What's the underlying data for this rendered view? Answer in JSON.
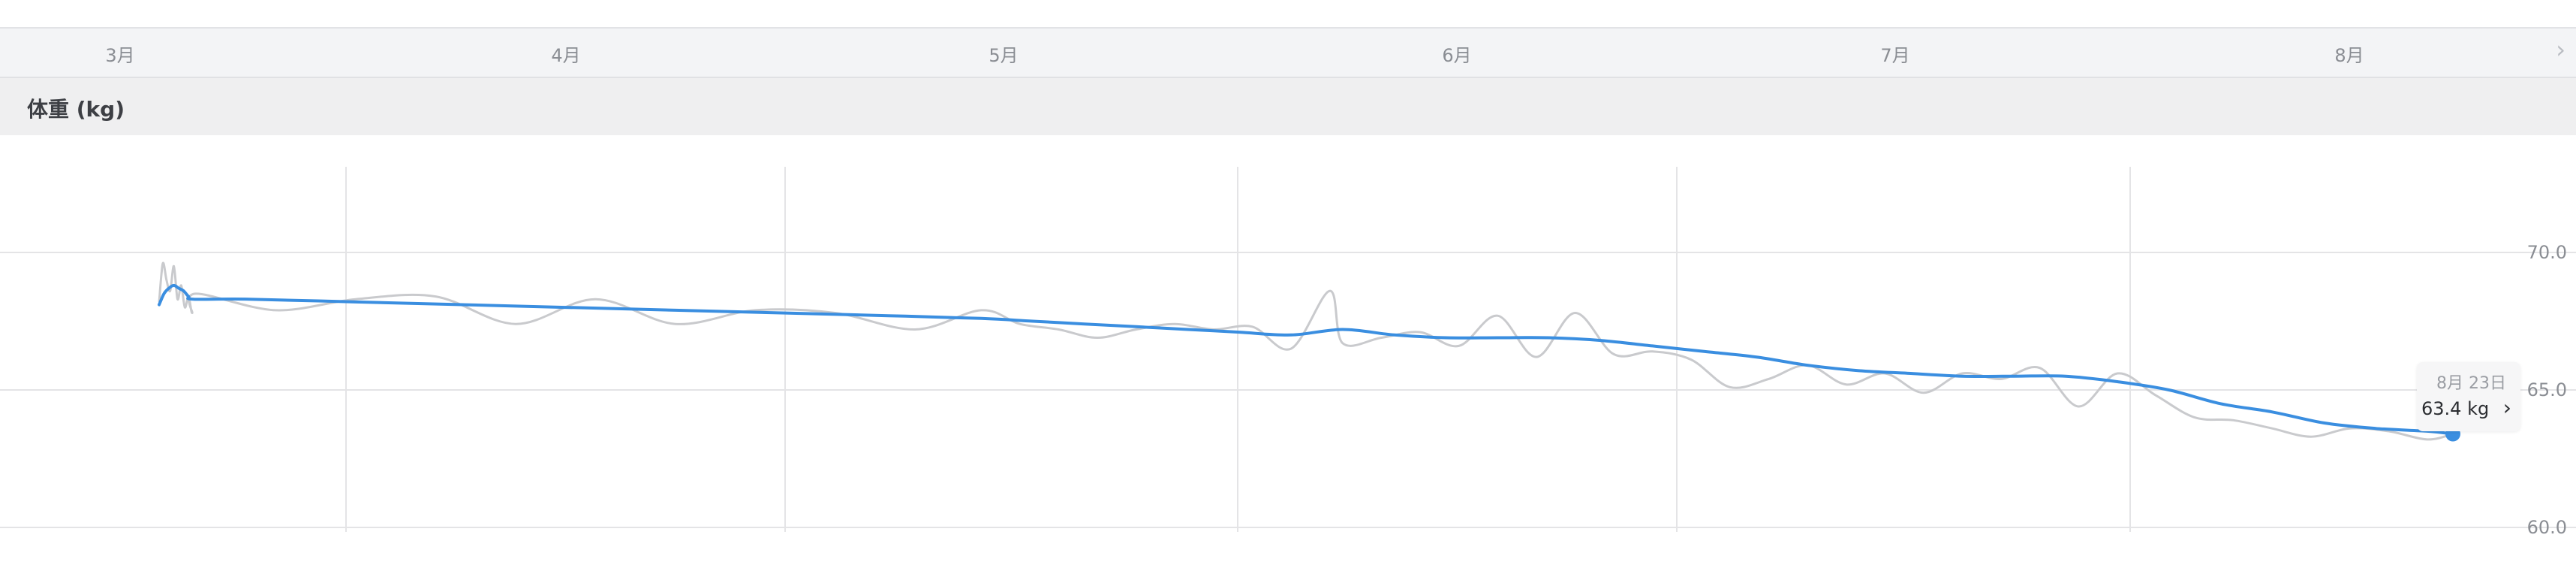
{
  "months": [
    "3月",
    "4月",
    "5月",
    "6月",
    "7月",
    "8月"
  ],
  "section": {
    "title": "体重 (kg)"
  },
  "tooltip": {
    "date": "8月 23日",
    "value_text": "63.4 kg"
  },
  "colors": {
    "trend": "#3a8ee0",
    "raw": "#c9cacd",
    "grid": "#e4e4e6",
    "axis_text": "#8a8d93"
  },
  "chart_data": {
    "type": "line",
    "x_unit": "date",
    "ylabel": "",
    "ylim": [
      60,
      71
    ],
    "yticks": [
      60.0,
      65.0,
      70.0
    ],
    "grid": true,
    "series": [
      {
        "role": "daily",
        "x": [
          "03-02",
          "03-05",
          "03-08",
          "03-11",
          "03-14",
          "03-17",
          "03-20",
          "03-23",
          "03-26",
          "03-29",
          "04-01",
          "04-04",
          "04-07",
          "04-10",
          "04-13",
          "04-16",
          "04-19",
          "04-22",
          "04-25",
          "04-28",
          "05-01",
          "05-04",
          "05-07",
          "05-10",
          "05-13",
          "05-16",
          "05-19",
          "05-22",
          "05-25",
          "05-28",
          "05-29",
          "06-01",
          "06-04",
          "06-07",
          "06-10",
          "06-13",
          "06-16",
          "06-19",
          "06-22",
          "06-25",
          "06-28",
          "07-01",
          "07-04",
          "07-07",
          "07-10",
          "07-13",
          "07-16",
          "07-19",
          "07-22",
          "07-25",
          "07-28",
          "07-31",
          "08-03",
          "08-06",
          "08-09",
          "08-12",
          "08-15",
          "08-18",
          "08-21",
          "08-23"
        ],
        "values": [
          68.2,
          69.6,
          69.0,
          68.6,
          69.5,
          68.3,
          68.8,
          68.0,
          68.4,
          67.8,
          68.5,
          67.9,
          68.3,
          68.4,
          67.4,
          68.3,
          67.4,
          67.9,
          67.8,
          67.2,
          67.9,
          67.4,
          67.2,
          66.9,
          67.2,
          67.4,
          67.2,
          67.3,
          66.5,
          68.6,
          66.7,
          66.9,
          67.1,
          66.6,
          67.7,
          66.2,
          67.8,
          66.3,
          66.4,
          66.1,
          65.1,
          65.4,
          65.9,
          65.2,
          65.6,
          64.9,
          65.6,
          65.4,
          65.8,
          64.4,
          65.6,
          64.8,
          64.0,
          63.9,
          63.6,
          63.3,
          63.6,
          63.5,
          63.2,
          63.4
        ]
      },
      {
        "role": "trend",
        "x": [
          "03-02",
          "03-06",
          "03-10",
          "03-14",
          "03-18",
          "03-22",
          "03-26",
          "03-30",
          "04-03",
          "04-07",
          "04-11",
          "04-15",
          "04-19",
          "04-23",
          "04-27",
          "05-01",
          "05-05",
          "05-09",
          "05-13",
          "05-17",
          "05-21",
          "05-25",
          "05-29",
          "06-02",
          "06-06",
          "06-10",
          "06-14",
          "06-18",
          "06-22",
          "06-26",
          "06-30",
          "07-04",
          "07-08",
          "07-12",
          "07-16",
          "07-20",
          "07-24",
          "07-28",
          "08-01",
          "08-05",
          "08-09",
          "08-13",
          "08-17",
          "08-21",
          "08-23"
        ],
        "values": [
          68.1,
          68.5,
          68.7,
          68.8,
          68.7,
          68.6,
          68.4,
          68.3,
          68.3,
          68.2,
          68.1,
          68.0,
          67.9,
          67.8,
          67.7,
          67.6,
          67.5,
          67.4,
          67.3,
          67.2,
          67.1,
          67.0,
          67.2,
          67.0,
          66.9,
          66.9,
          66.9,
          66.8,
          66.6,
          66.4,
          66.2,
          65.9,
          65.7,
          65.6,
          65.5,
          65.5,
          65.5,
          65.3,
          65.0,
          64.5,
          64.2,
          63.8,
          63.6,
          63.5,
          63.4
        ]
      }
    ]
  }
}
